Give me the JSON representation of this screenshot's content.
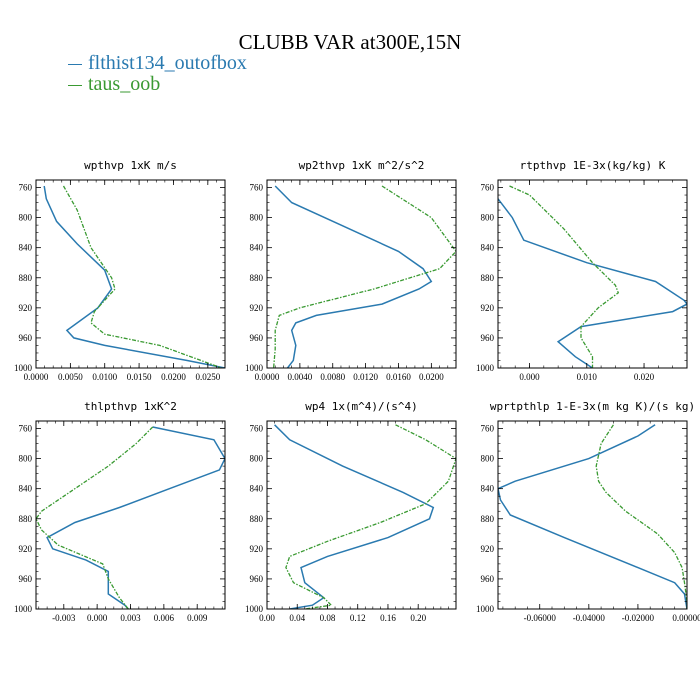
{
  "figure": {
    "title": "CLUBB VAR at300E,15N",
    "colors": {
      "series_a": "#2a7ab0",
      "series_b": "#3a9a32",
      "axis": "#000000"
    }
  },
  "legend": {
    "items": [
      {
        "label": "flthist134_outofbox",
        "color": "#2a7ab0",
        "style": "solid"
      },
      {
        "label": "taus_oob",
        "color": "#3a9a32",
        "style": "dashed"
      }
    ]
  },
  "chart_data": [
    {
      "type": "line",
      "title": "wpthvp   1xK m/s",
      "xlim": [
        0,
        0.0275
      ],
      "ylim": [
        1000,
        750
      ],
      "xticks": [
        0,
        0.005,
        0.01,
        0.015,
        0.02,
        0.025
      ],
      "xticklabels": [
        "0.0000",
        "0.0050",
        "0.0100",
        "0.0150",
        "0.0200",
        "0.0250"
      ],
      "yticks": [
        760,
        800,
        840,
        880,
        920,
        960,
        1000
      ],
      "yticklabels": [
        "760",
        "800",
        "840",
        "880",
        "920",
        "960",
        "1000"
      ],
      "grid": false,
      "series": [
        {
          "name": "flthist134_outofbox",
          "color": "#2a7ab0",
          "dashed": false,
          "points": [
            [
              0.0012,
              758
            ],
            [
              0.0015,
              775
            ],
            [
              0.003,
              805
            ],
            [
              0.006,
              835
            ],
            [
              0.01,
              870
            ],
            [
              0.011,
              895
            ],
            [
              0.009,
              920
            ],
            [
              0.0045,
              950
            ],
            [
              0.0055,
              960
            ],
            [
              0.01,
              970
            ],
            [
              0.022,
              990
            ],
            [
              0.0275,
              1000
            ]
          ]
        },
        {
          "name": "taus_oob",
          "color": "#3a9a32",
          "dashed": true,
          "points": [
            [
              0.004,
              758
            ],
            [
              0.006,
              790
            ],
            [
              0.008,
              840
            ],
            [
              0.011,
              880
            ],
            [
              0.0115,
              895
            ],
            [
              0.0085,
              925
            ],
            [
              0.008,
              940
            ],
            [
              0.01,
              955
            ],
            [
              0.018,
              970
            ],
            [
              0.027,
              1000
            ]
          ]
        }
      ]
    },
    {
      "type": "line",
      "title": "wp2thvp   1xK m^2/s^2",
      "xlim": [
        0,
        0.023
      ],
      "ylim": [
        1000,
        750
      ],
      "xticks": [
        0,
        0.004,
        0.008,
        0.012,
        0.016,
        0.02
      ],
      "xticklabels": [
        "0.0000",
        "0.0040",
        "0.0080",
        "0.0120",
        "0.0160",
        "0.0200"
      ],
      "yticks": [
        760,
        800,
        840,
        880,
        920,
        960,
        1000
      ],
      "yticklabels": [
        "760",
        "800",
        "840",
        "880",
        "920",
        "960",
        "1000"
      ],
      "grid": false,
      "series": [
        {
          "name": "flthist134_outofbox",
          "color": "#2a7ab0",
          "dashed": false,
          "points": [
            [
              0.001,
              758
            ],
            [
              0.003,
              780
            ],
            [
              0.009,
              810
            ],
            [
              0.016,
              845
            ],
            [
              0.019,
              868
            ],
            [
              0.02,
              885
            ],
            [
              0.0185,
              895
            ],
            [
              0.014,
              915
            ],
            [
              0.006,
              930
            ],
            [
              0.0035,
              940
            ],
            [
              0.003,
              950
            ],
            [
              0.0035,
              970
            ],
            [
              0.0032,
              990
            ],
            [
              0.0025,
              1000
            ]
          ]
        },
        {
          "name": "taus_oob",
          "color": "#3a9a32",
          "dashed": true,
          "points": [
            [
              0.014,
              758
            ],
            [
              0.02,
              800
            ],
            [
              0.023,
              845
            ],
            [
              0.021,
              868
            ],
            [
              0.013,
              895
            ],
            [
              0.004,
              920
            ],
            [
              0.0015,
              930
            ],
            [
              0.001,
              950
            ],
            [
              0.001,
              975
            ],
            [
              0.0008,
              1000
            ]
          ]
        }
      ]
    },
    {
      "type": "line",
      "title": "rtpthvp   1E-3x(kg/kg) K",
      "xlim": [
        -0.0055,
        0.0275
      ],
      "ylim": [
        1000,
        750
      ],
      "xticks": [
        0,
        0.01,
        0.02
      ],
      "xticklabels": [
        "0.000",
        "0.010",
        "0.020"
      ],
      "yticks": [
        760,
        800,
        840,
        880,
        920,
        960,
        1000
      ],
      "yticklabels": [
        "760",
        "800",
        "840",
        "880",
        "920",
        "960",
        "1000"
      ],
      "grid": false,
      "series": [
        {
          "name": "flthist134_outofbox",
          "color": "#2a7ab0",
          "dashed": false,
          "points": [
            [
              -0.0055,
              775
            ],
            [
              -0.003,
              800
            ],
            [
              -0.001,
              830
            ],
            [
              0.01,
              860
            ],
            [
              0.022,
              885
            ],
            [
              0.027,
              910
            ],
            [
              0.0275,
              915
            ],
            [
              0.025,
              925
            ],
            [
              0.009,
              945
            ],
            [
              0.005,
              965
            ],
            [
              0.008,
              985
            ],
            [
              0.011,
              1000
            ]
          ]
        },
        {
          "name": "taus_oob",
          "color": "#3a9a32",
          "dashed": true,
          "points": [
            [
              -0.0035,
              758
            ],
            [
              0.0,
              770
            ],
            [
              0.006,
              815
            ],
            [
              0.011,
              860
            ],
            [
              0.015,
              890
            ],
            [
              0.0155,
              900
            ],
            [
              0.012,
              920
            ],
            [
              0.009,
              945
            ],
            [
              0.009,
              960
            ],
            [
              0.011,
              985
            ],
            [
              0.011,
              1000
            ]
          ]
        }
      ]
    },
    {
      "type": "line",
      "title": "thlpthvp   1xK^2",
      "xlim": [
        -0.0055,
        0.0115
      ],
      "ylim": [
        1000,
        750
      ],
      "xticks": [
        -0.003,
        0,
        0.003,
        0.006,
        0.009
      ],
      "xticklabels": [
        "-0.003",
        "0.000",
        "0.003",
        "0.006",
        "0.009"
      ],
      "yticks": [
        760,
        800,
        840,
        880,
        920,
        960,
        1000
      ],
      "yticklabels": [
        "760",
        "800",
        "840",
        "880",
        "920",
        "960",
        "1000"
      ],
      "grid": false,
      "series": [
        {
          "name": "flthist134_outofbox",
          "color": "#2a7ab0",
          "dashed": false,
          "points": [
            [
              0.005,
              758
            ],
            [
              0.0105,
              775
            ],
            [
              0.0115,
              800
            ],
            [
              0.011,
              815
            ],
            [
              0.0065,
              840
            ],
            [
              0.002,
              865
            ],
            [
              -0.002,
              885
            ],
            [
              -0.0045,
              905
            ],
            [
              -0.004,
              920
            ],
            [
              -0.001,
              935
            ],
            [
              0.001,
              950
            ],
            [
              0.001,
              980
            ],
            [
              0.0025,
              995
            ],
            [
              0.0028,
              1000
            ]
          ]
        },
        {
          "name": "taus_oob",
          "color": "#3a9a32",
          "dashed": true,
          "points": [
            [
              0.005,
              758
            ],
            [
              0.0035,
              780
            ],
            [
              0.001,
              810
            ],
            [
              -0.003,
              850
            ],
            [
              -0.005,
              870
            ],
            [
              -0.0055,
              880
            ],
            [
              -0.005,
              895
            ],
            [
              -0.0035,
              915
            ],
            [
              0.0005,
              940
            ],
            [
              0.001,
              960
            ],
            [
              0.002,
              985
            ],
            [
              0.0028,
              1000
            ]
          ]
        }
      ]
    },
    {
      "type": "line",
      "title": "wp4   1x(m^4)/(s^4)",
      "xlim": [
        0,
        0.25
      ],
      "ylim": [
        1000,
        750
      ],
      "xticks": [
        0,
        0.04,
        0.08,
        0.12,
        0.16,
        0.2
      ],
      "xticklabels": [
        "0.00",
        "0.04",
        "0.08",
        "0.12",
        "0.16",
        "0.20"
      ],
      "yticks": [
        760,
        800,
        840,
        880,
        920,
        960,
        1000
      ],
      "yticklabels": [
        "760",
        "800",
        "840",
        "880",
        "920",
        "960",
        "1000"
      ],
      "grid": false,
      "series": [
        {
          "name": "flthist134_outofbox",
          "color": "#2a7ab0",
          "dashed": false,
          "points": [
            [
              0.01,
              755
            ],
            [
              0.03,
              775
            ],
            [
              0.1,
              810
            ],
            [
              0.18,
              845
            ],
            [
              0.22,
              865
            ],
            [
              0.215,
              880
            ],
            [
              0.16,
              905
            ],
            [
              0.08,
              930
            ],
            [
              0.045,
              945
            ],
            [
              0.05,
              965
            ],
            [
              0.075,
              985
            ],
            [
              0.06,
              995
            ],
            [
              0.03,
              1000
            ]
          ]
        },
        {
          "name": "taus_oob",
          "color": "#3a9a32",
          "dashed": true,
          "points": [
            [
              0.17,
              755
            ],
            [
              0.21,
              775
            ],
            [
              0.25,
              800
            ],
            [
              0.24,
              830
            ],
            [
              0.21,
              860
            ],
            [
              0.15,
              885
            ],
            [
              0.08,
              910
            ],
            [
              0.03,
              930
            ],
            [
              0.025,
              945
            ],
            [
              0.035,
              965
            ],
            [
              0.075,
              985
            ],
            [
              0.085,
              995
            ],
            [
              0.05,
              1000
            ]
          ]
        }
      ]
    },
    {
      "type": "line",
      "title": "wprtpthlp   1-E-3x(m kg K)/(s kg)",
      "xlim": [
        -0.077,
        0
      ],
      "ylim": [
        1000,
        750
      ],
      "xticks": [
        -0.06,
        -0.04,
        -0.02,
        0
      ],
      "xticklabels": [
        "-0.06000",
        "-0.04000",
        "-0.02000",
        "0.00000"
      ],
      "yticks": [
        760,
        800,
        840,
        880,
        920,
        960,
        1000
      ],
      "yticklabels": [
        "760",
        "800",
        "840",
        "880",
        "920",
        "960",
        "1000"
      ],
      "grid": false,
      "series": [
        {
          "name": "flthist134_outofbox",
          "color": "#2a7ab0",
          "dashed": false,
          "points": [
            [
              -0.013,
              755
            ],
            [
              -0.02,
              770
            ],
            [
              -0.04,
              800
            ],
            [
              -0.07,
              830
            ],
            [
              -0.077,
              840
            ],
            [
              -0.076,
              855
            ],
            [
              -0.072,
              875
            ],
            [
              -0.05,
              905
            ],
            [
              -0.02,
              945
            ],
            [
              -0.005,
              965
            ],
            [
              -0.001,
              980
            ],
            [
              0.0,
              1000
            ]
          ]
        },
        {
          "name": "taus_oob",
          "color": "#3a9a32",
          "dashed": true,
          "points": [
            [
              -0.03,
              755
            ],
            [
              -0.035,
              780
            ],
            [
              -0.037,
              810
            ],
            [
              -0.036,
              830
            ],
            [
              -0.033,
              845
            ],
            [
              -0.025,
              870
            ],
            [
              -0.012,
              900
            ],
            [
              -0.005,
              925
            ],
            [
              -0.002,
              945
            ],
            [
              -0.001,
              965
            ],
            [
              0.0,
              990
            ],
            [
              0.0,
              1000
            ]
          ]
        }
      ]
    }
  ]
}
